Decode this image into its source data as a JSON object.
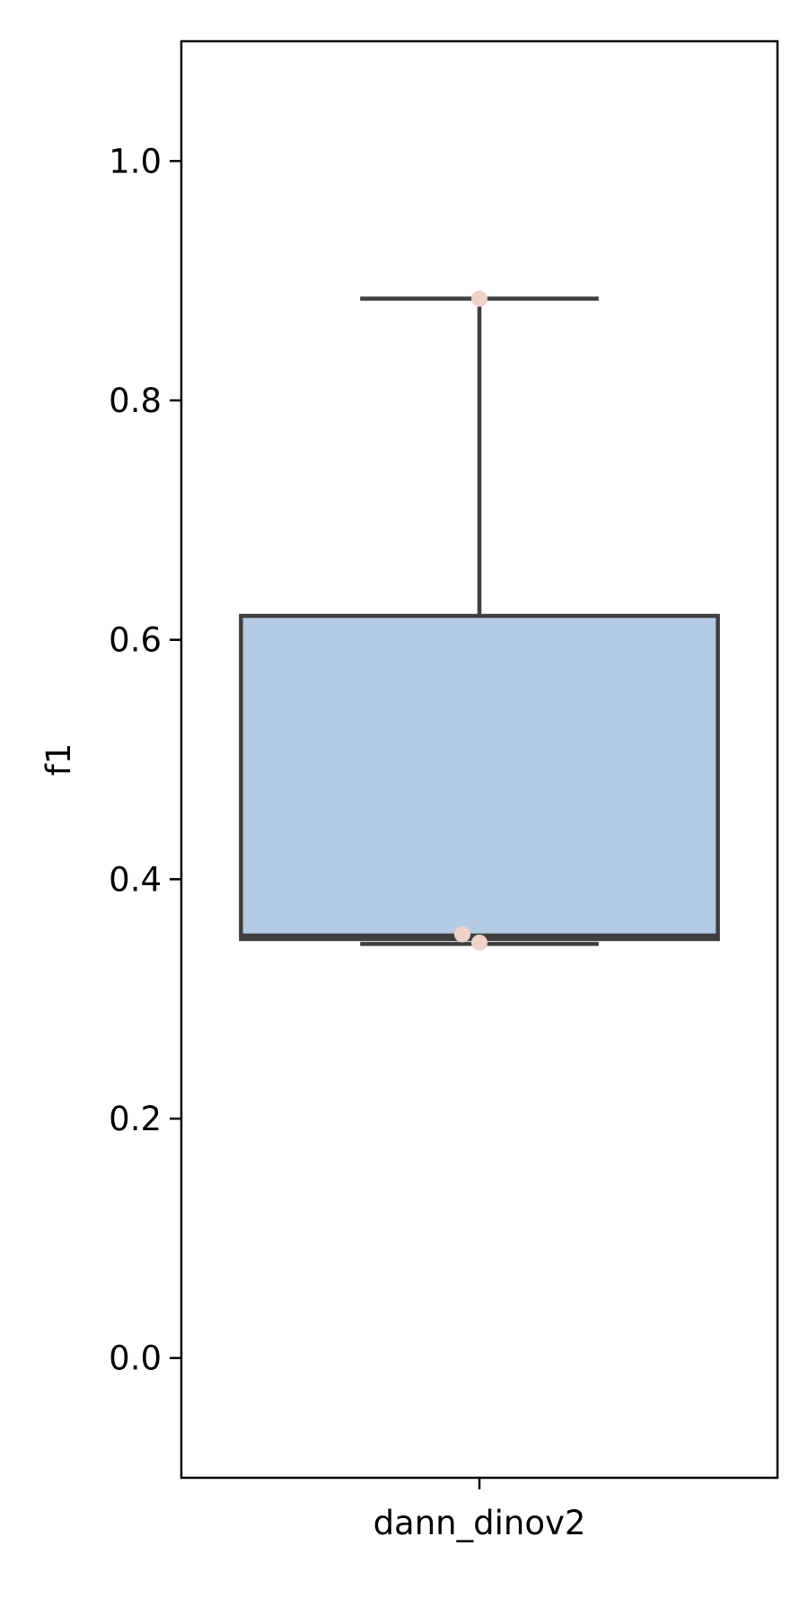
{
  "chart_data": {
    "type": "box",
    "categories": [
      "dann_dinov2"
    ],
    "ylabel": "f1",
    "xlabel": "",
    "ylim": [
      -0.1,
      1.1
    ],
    "yticks": [
      "0.0",
      "0.2",
      "0.4",
      "0.6",
      "0.8",
      "1.0"
    ],
    "grid": false,
    "boxes": [
      {
        "category": "dann_dinov2",
        "whisker_low": 0.346,
        "q1": 0.35,
        "median": 0.353,
        "q3": 0.62,
        "whisker_high": 0.885,
        "points": [
          0.885,
          0.354,
          0.347
        ]
      }
    ],
    "colors": {
      "box_fill": "#b3cbe4",
      "box_edge": "#3f3f3f",
      "points": "#f0d2c8"
    }
  }
}
